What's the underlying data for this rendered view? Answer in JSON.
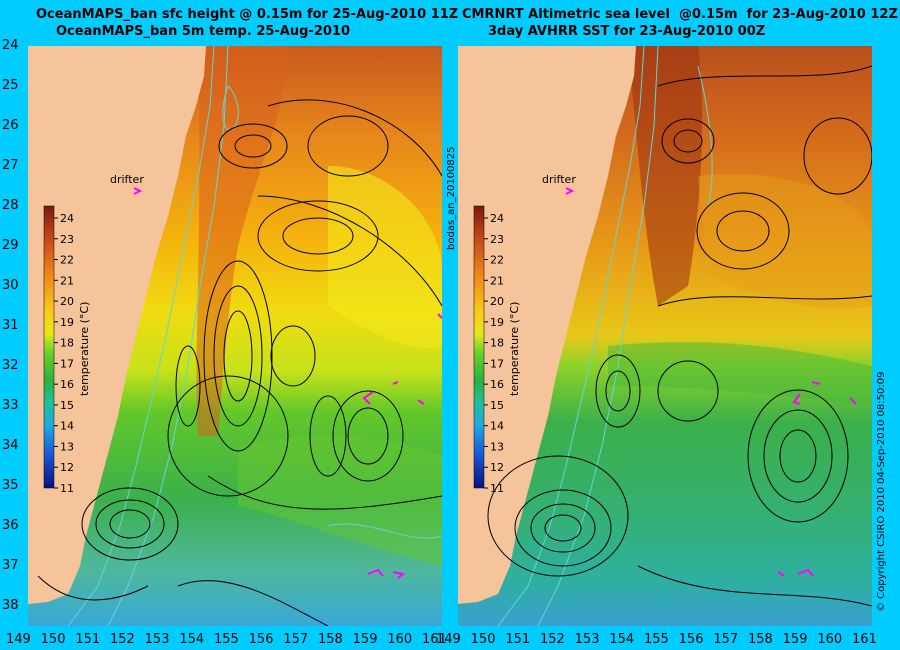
{
  "panels": [
    {
      "title_line1": "OceanMAPS_ban sfc height @ 0.15m for 25-Aug-2010 11Z",
      "title_line2": "OceanMAPS_ban 5m temp. 25-Aug-2010",
      "drifter_label": "drifter",
      "colorbar_label": "temperature (°C)"
    },
    {
      "title_line1": "CMRNRT Altimetric sea level  @0.15m  for 23-Aug-2010 12Z",
      "title_line2": "3day AVHRR SST for 23-Aug-2010 00Z",
      "drifter_label": "drifter",
      "colorbar_label": "temperature (°C)"
    }
  ],
  "side_left_text": "bodas_an_20100825",
  "side_right_text": "© Copyright CSIRO 2010   04-Sep-2010 08:50:09",
  "colorbar_ticks": [
    "24",
    "23",
    "22",
    "21",
    "20",
    "19",
    "18",
    "17",
    "16",
    "15",
    "14",
    "13",
    "12",
    "11"
  ],
  "lat_ticks": [
    "24",
    "25",
    "26",
    "27",
    "28",
    "29",
    "30",
    "31",
    "32",
    "33",
    "34",
    "35",
    "36",
    "37",
    "38"
  ],
  "lon_ticks": [
    "149",
    "150",
    "151",
    "152",
    "153",
    "154",
    "155",
    "156",
    "157",
    "158",
    "159",
    "160",
    "161"
  ],
  "colors": {
    "background": "#00ccff",
    "land": "#f5c49a",
    "contour": "#000000",
    "isobath": "#5fd6d6",
    "drifter_arrow": "#ff00ff"
  }
}
